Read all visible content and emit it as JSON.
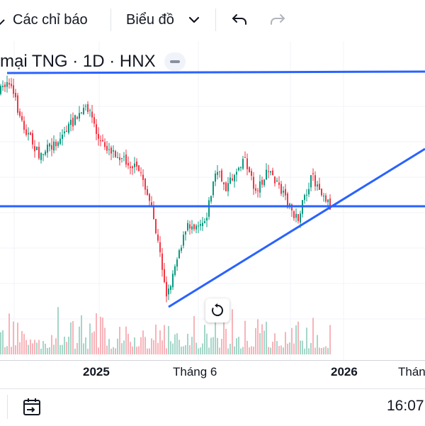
{
  "toolbar": {
    "indicators_label": "Các chỉ báo",
    "chart_type_label": "Biểu đồ",
    "chart_type_icon": "chevron-down-icon",
    "undo_icon": "undo-icon",
    "redo_icon": "redo-icon"
  },
  "legend": {
    "title": "mại TNG · 1D · HNX"
  },
  "x_axis": {
    "labels": [
      "2025",
      "Tháng 6",
      "2026",
      "Thán"
    ]
  },
  "bottom": {
    "date_range_icon": "calendar-goto-icon",
    "time": "16:07"
  },
  "colors": {
    "up": "#089981",
    "down": "#f23645",
    "trendline": "#2962ff",
    "volume_up": "#a5d6c8",
    "volume_down": "#f7b3b9"
  },
  "chart_data": {
    "type": "candlestick",
    "symbol": "TNG",
    "interval": "1D",
    "exchange": "HNX",
    "drawings": [
      "horizontal-line",
      "horizontal-line",
      "trend-line"
    ]
  }
}
